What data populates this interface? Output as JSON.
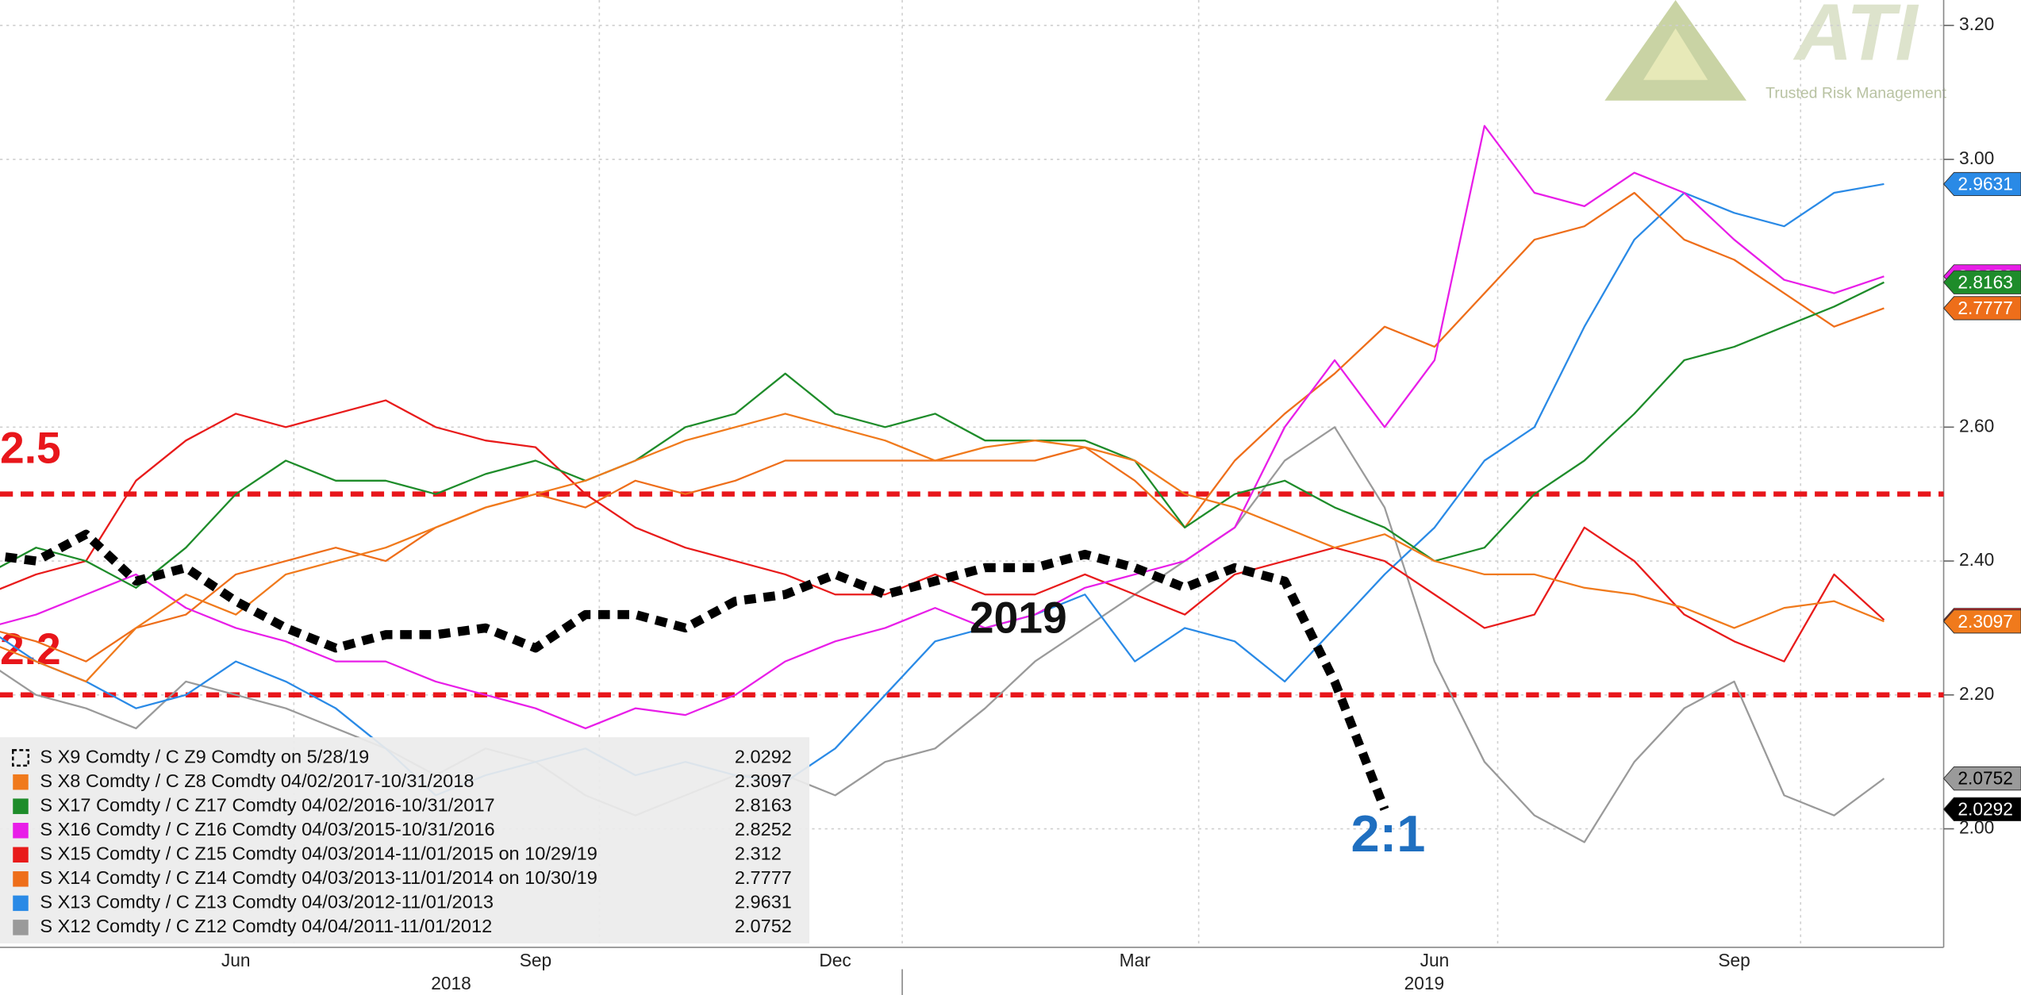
{
  "chart_data": {
    "type": "line",
    "categories": [
      null,
      null,
      null,
      null,
      null,
      "Jun",
      null,
      null,
      null,
      null,
      null,
      "Sep",
      null,
      null,
      null,
      null,
      null,
      "Dec",
      null,
      null,
      null,
      null,
      null,
      "Mar",
      null,
      null,
      null,
      null,
      null,
      "Jun",
      null,
      null,
      null,
      null,
      null,
      "Sep",
      null,
      null,
      null
    ],
    "x_group_labels": [
      "2018",
      "2019"
    ],
    "ylim": [
      1.823,
      3.238
    ],
    "yticks": [
      {
        "value": 2,
        "label": "2.00"
      },
      {
        "value": 2.2,
        "label": "2.20"
      },
      {
        "value": 2.4,
        "label": "2.40"
      },
      {
        "value": 2.6,
        "label": "2.60"
      },
      {
        "value": 3,
        "label": "3.00"
      },
      {
        "value": 3.2,
        "label": "3.20"
      }
    ],
    "grid": true,
    "legend": "bottom-left",
    "reference_lines": [
      2.5,
      2.2
    ],
    "reference_color": "#e8161b",
    "annotations": [
      {
        "text": "2019",
        "color": "#111111"
      },
      {
        "text": "2:1",
        "color": "#1f6fc0"
      }
    ],
    "logo": {
      "text": "ATI",
      "tagline": "Trusted Risk Management"
    },
    "series": [
      {
        "name": "S X9 Comdty / C Z9 Comdty on 5/28/19",
        "color": "#000000",
        "dashed": true,
        "values": [
          2.41,
          2.4,
          2.44,
          2.37,
          2.39,
          2.34,
          2.3,
          2.27,
          2.29,
          2.29,
          2.3,
          2.27,
          2.32,
          2.32,
          2.3,
          2.34,
          2.35,
          2.38,
          2.35,
          2.37,
          2.39,
          2.39,
          2.41,
          2.39,
          2.36,
          2.39,
          2.37,
          2.22,
          2.0292,
          null,
          null,
          null,
          null,
          null,
          null,
          null,
          null,
          null,
          null
        ]
      },
      {
        "name": "S X8 Comdty / C Z8 Comdty 04/02/2017-10/31/2018",
        "color": "#f07a1c",
        "values": [
          2.28,
          2.25,
          2.22,
          2.3,
          2.35,
          2.32,
          2.38,
          2.4,
          2.42,
          2.45,
          2.48,
          2.5,
          2.52,
          2.55,
          2.58,
          2.6,
          2.62,
          2.6,
          2.58,
          2.55,
          2.57,
          2.58,
          2.57,
          2.55,
          2.5,
          2.48,
          2.45,
          2.42,
          2.44,
          2.4,
          2.38,
          2.38,
          2.36,
          2.35,
          2.33,
          2.3,
          2.33,
          2.34,
          2.3097
        ]
      },
      {
        "name": "S X17 Comdty / C Z17 Comdty 04/02/2016-10/31/2017",
        "color": "#1e8c2a",
        "values": [
          2.38,
          2.42,
          2.4,
          2.36,
          2.42,
          2.5,
          2.55,
          2.52,
          2.52,
          2.5,
          2.53,
          2.55,
          2.52,
          2.55,
          2.6,
          2.62,
          2.68,
          2.62,
          2.6,
          2.62,
          2.58,
          2.58,
          2.58,
          2.55,
          2.45,
          2.5,
          2.52,
          2.48,
          2.45,
          2.4,
          2.42,
          2.5,
          2.55,
          2.62,
          2.7,
          2.72,
          2.75,
          2.78,
          2.8163
        ]
      },
      {
        "name": "S X16 Comdty / C Z16 Comdty 04/03/2015-10/31/2016",
        "color": "#e81ee8",
        "values": [
          2.3,
          2.32,
          2.35,
          2.38,
          2.33,
          2.3,
          2.28,
          2.25,
          2.25,
          2.22,
          2.2,
          2.18,
          2.15,
          2.18,
          2.17,
          2.2,
          2.25,
          2.28,
          2.3,
          2.33,
          2.3,
          2.32,
          2.36,
          2.38,
          2.4,
          2.45,
          2.6,
          2.7,
          2.6,
          2.7,
          3.05,
          2.95,
          2.93,
          2.98,
          2.95,
          2.88,
          2.82,
          2.8,
          2.8252
        ]
      },
      {
        "name": "S X15 Comdty / C Z15 Comdty 04/03/2014-11/01/2015 on 10/29/19",
        "color": "#e81b1b",
        "values": [
          2.35,
          2.38,
          2.4,
          2.52,
          2.58,
          2.62,
          2.6,
          2.62,
          2.64,
          2.6,
          2.58,
          2.57,
          2.5,
          2.45,
          2.42,
          2.4,
          2.38,
          2.35,
          2.35,
          2.38,
          2.35,
          2.35,
          2.38,
          2.35,
          2.32,
          2.38,
          2.4,
          2.42,
          2.4,
          2.35,
          2.3,
          2.32,
          2.45,
          2.4,
          2.32,
          2.28,
          2.25,
          2.38,
          2.312
        ]
      },
      {
        "name": "S X14 Comdty / C Z14 Comdty 04/03/2013-11/01/2014 on 10/30/19",
        "color": "#ee6e1a",
        "values": [
          2.3,
          2.28,
          2.25,
          2.3,
          2.32,
          2.38,
          2.4,
          2.42,
          2.4,
          2.45,
          2.48,
          2.5,
          2.48,
          2.52,
          2.5,
          2.52,
          2.55,
          2.55,
          2.55,
          2.55,
          2.55,
          2.55,
          2.57,
          2.52,
          2.45,
          2.55,
          2.62,
          2.68,
          2.75,
          2.72,
          2.8,
          2.88,
          2.9,
          2.95,
          2.88,
          2.85,
          2.8,
          2.75,
          2.7777
        ]
      },
      {
        "name": "S X13 Comdty / C Z13 Comdty 04/03/2012-11/01/2013",
        "color": "#2a8ae6",
        "values": [
          2.3,
          2.25,
          2.22,
          2.18,
          2.2,
          2.25,
          2.22,
          2.18,
          2.12,
          2.05,
          2.08,
          2.1,
          2.12,
          2.08,
          2.1,
          2.08,
          2.07,
          2.12,
          2.2,
          2.28,
          2.3,
          2.32,
          2.35,
          2.25,
          2.3,
          2.28,
          2.22,
          2.3,
          2.38,
          2.45,
          2.55,
          2.6,
          2.75,
          2.88,
          2.95,
          2.92,
          2.9,
          2.95,
          2.9631
        ]
      },
      {
        "name": "S X12 Comdty / C Z12 Comdty 04/04/2011-11/01/2012",
        "color": "#9a9a9a",
        "values": [
          2.25,
          2.2,
          2.18,
          2.15,
          2.22,
          2.2,
          2.18,
          2.15,
          2.12,
          2.08,
          2.12,
          2.1,
          2.05,
          2.02,
          2.05,
          2.08,
          2.08,
          2.05,
          2.1,
          2.12,
          2.18,
          2.25,
          2.3,
          2.35,
          2.4,
          2.45,
          2.55,
          2.6,
          2.48,
          2.25,
          2.1,
          2.02,
          1.98,
          2.1,
          2.18,
          2.22,
          2.05,
          2.02,
          2.0752
        ]
      }
    ]
  }
}
